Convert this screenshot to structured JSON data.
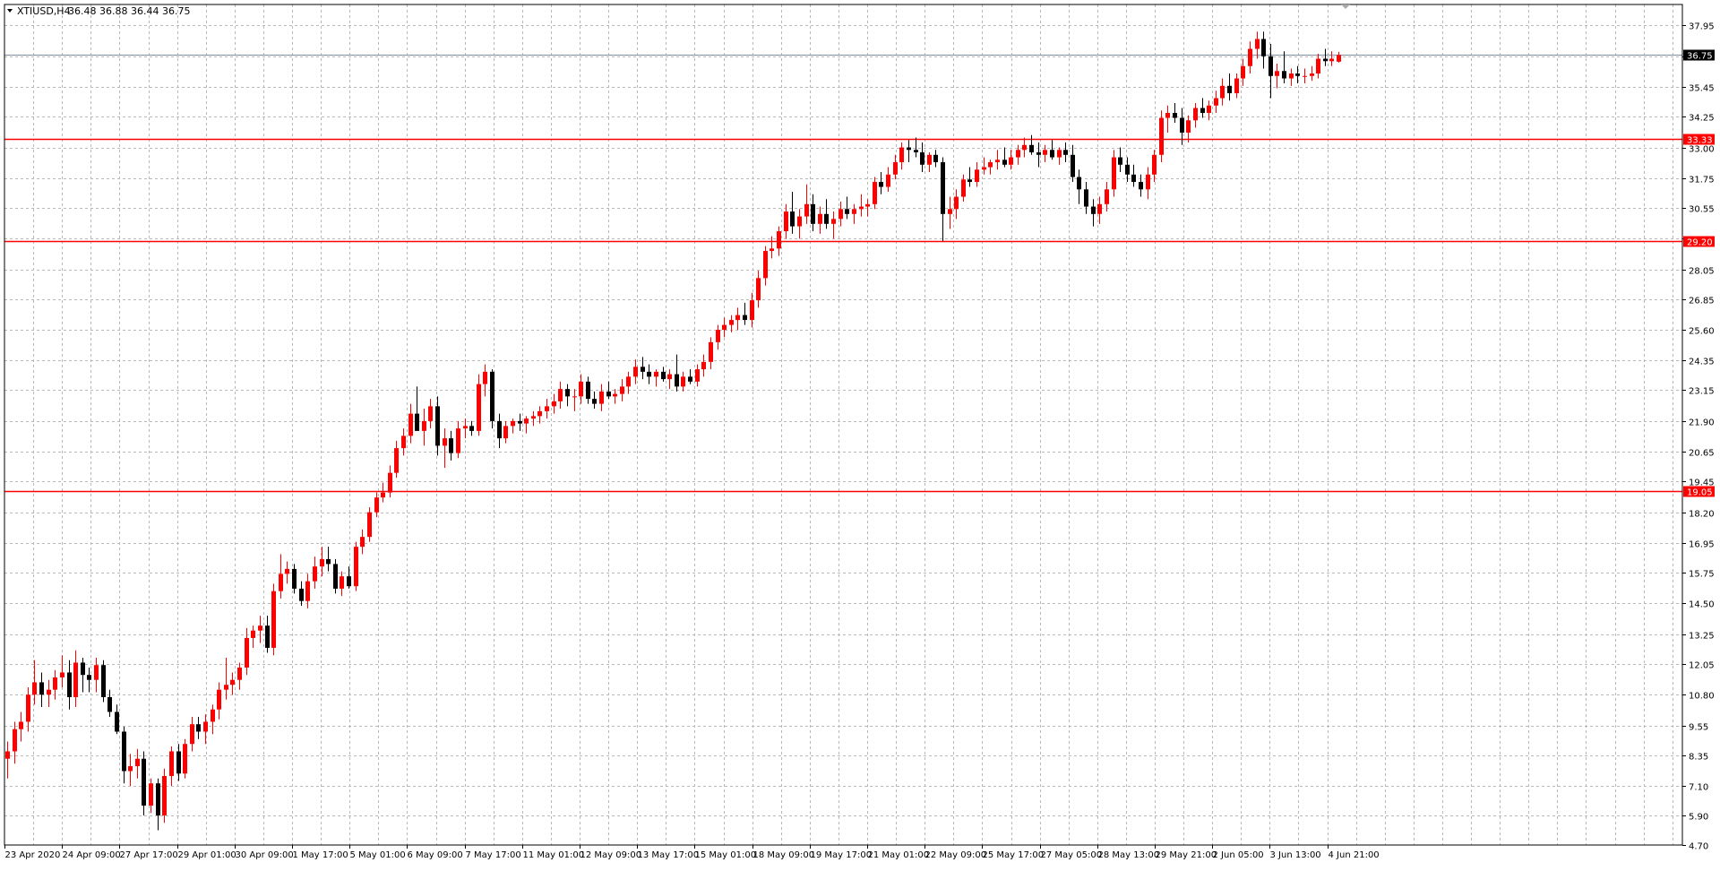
{
  "header": {
    "symbol": "XTIUSD,H4",
    "ohlc": "36.48 36.88 36.44 36.75"
  },
  "colors": {
    "background": "#ffffff",
    "grid": "#b8b8b8",
    "bull_candle": "#ff0000",
    "bear_candle": "#000000",
    "level_line": "#ff0000",
    "bid_line": "#7f8fa6",
    "axis_text": "#000000"
  },
  "chart_data": {
    "type": "candlestick",
    "title": "",
    "xlabel": "",
    "ylabel": "",
    "ylim": [
      4.7,
      38.8
    ],
    "grid": true,
    "y_ticks": [
      "37.95",
      "36.70",
      "35.45",
      "34.25",
      "33.00",
      "31.75",
      "30.55",
      "29.30",
      "28.05",
      "26.85",
      "25.60",
      "24.35",
      "23.15",
      "21.90",
      "20.65",
      "19.45",
      "18.20",
      "16.95",
      "15.75",
      "14.50",
      "13.25",
      "12.05",
      "10.80",
      "9.55",
      "8.35",
      "7.10",
      "5.90",
      "4.70"
    ],
    "x_labels": [
      "23 Apr 2020",
      "24 Apr 09:00",
      "27 Apr 17:00",
      "29 Apr 01:00",
      "30 Apr 09:00",
      "1 May 17:00",
      "5 May 01:00",
      "6 May 09:00",
      "7 May 17:00",
      "11 May 01:00",
      "12 May 09:00",
      "13 May 17:00",
      "15 May 01:00",
      "18 May 09:00",
      "19 May 17:00",
      "21 May 01:00",
      "22 May 09:00",
      "25 May 17:00",
      "27 May 05:00",
      "28 May 13:00",
      "29 May 21:00",
      "2 Jun 05:00",
      "3 Jun 13:00",
      "4 Jun 21:00"
    ],
    "horizontal_levels": [
      {
        "value": 33.33,
        "label": "33.33"
      },
      {
        "value": 29.2,
        "label": "29.20"
      },
      {
        "value": 19.05,
        "label": "19.05"
      }
    ],
    "bid_line": {
      "value": 36.75,
      "label": "36.75"
    },
    "candles": [
      {
        "o": 8.2,
        "h": 8.9,
        "l": 7.4,
        "c": 8.5
      },
      {
        "o": 8.5,
        "h": 9.7,
        "l": 8.0,
        "c": 9.4
      },
      {
        "o": 9.4,
        "h": 10.1,
        "l": 8.9,
        "c": 9.7
      },
      {
        "o": 9.7,
        "h": 11.1,
        "l": 9.3,
        "c": 10.8
      },
      {
        "o": 10.8,
        "h": 12.2,
        "l": 10.4,
        "c": 11.3
      },
      {
        "o": 11.3,
        "h": 11.7,
        "l": 10.3,
        "c": 10.8
      },
      {
        "o": 10.8,
        "h": 11.4,
        "l": 10.3,
        "c": 11.0
      },
      {
        "o": 11.0,
        "h": 11.8,
        "l": 10.6,
        "c": 11.5
      },
      {
        "o": 11.5,
        "h": 12.4,
        "l": 11.1,
        "c": 11.7
      },
      {
        "o": 11.7,
        "h": 12.2,
        "l": 10.2,
        "c": 10.7
      },
      {
        "o": 10.7,
        "h": 12.6,
        "l": 10.3,
        "c": 12.1
      },
      {
        "o": 12.1,
        "h": 12.3,
        "l": 10.9,
        "c": 11.6
      },
      {
        "o": 11.6,
        "h": 11.9,
        "l": 10.9,
        "c": 11.4
      },
      {
        "o": 11.4,
        "h": 12.3,
        "l": 10.9,
        "c": 12.0
      },
      {
        "o": 12.0,
        "h": 12.2,
        "l": 10.5,
        "c": 10.7
      },
      {
        "o": 10.7,
        "h": 11.0,
        "l": 9.9,
        "c": 10.1
      },
      {
        "o": 10.1,
        "h": 10.4,
        "l": 9.2,
        "c": 9.3
      },
      {
        "o": 9.3,
        "h": 9.5,
        "l": 7.2,
        "c": 7.7
      },
      {
        "o": 7.7,
        "h": 8.4,
        "l": 7.1,
        "c": 7.9
      },
      {
        "o": 7.9,
        "h": 8.6,
        "l": 7.4,
        "c": 8.2
      },
      {
        "o": 8.2,
        "h": 8.5,
        "l": 5.9,
        "c": 6.3
      },
      {
        "o": 6.3,
        "h": 7.4,
        "l": 6.0,
        "c": 7.2
      },
      {
        "o": 7.2,
        "h": 7.4,
        "l": 5.3,
        "c": 5.9
      },
      {
        "o": 5.9,
        "h": 7.8,
        "l": 5.6,
        "c": 7.5
      },
      {
        "o": 7.5,
        "h": 8.7,
        "l": 7.1,
        "c": 8.5
      },
      {
        "o": 8.5,
        "h": 8.8,
        "l": 7.3,
        "c": 7.6
      },
      {
        "o": 7.6,
        "h": 9.0,
        "l": 7.4,
        "c": 8.8
      },
      {
        "o": 8.8,
        "h": 9.9,
        "l": 8.5,
        "c": 9.6
      },
      {
        "o": 9.6,
        "h": 9.9,
        "l": 9.0,
        "c": 9.3
      },
      {
        "o": 9.3,
        "h": 10.0,
        "l": 8.8,
        "c": 9.7
      },
      {
        "o": 9.7,
        "h": 10.4,
        "l": 9.2,
        "c": 10.2
      },
      {
        "o": 10.2,
        "h": 11.3,
        "l": 9.8,
        "c": 11.0
      },
      {
        "o": 11.0,
        "h": 12.3,
        "l": 10.6,
        "c": 11.2
      },
      {
        "o": 11.2,
        "h": 11.7,
        "l": 10.8,
        "c": 11.4
      },
      {
        "o": 11.4,
        "h": 12.1,
        "l": 11.0,
        "c": 11.9
      },
      {
        "o": 11.9,
        "h": 13.5,
        "l": 11.6,
        "c": 13.1
      },
      {
        "o": 13.1,
        "h": 13.6,
        "l": 12.7,
        "c": 13.4
      },
      {
        "o": 13.4,
        "h": 14.0,
        "l": 12.9,
        "c": 13.6
      },
      {
        "o": 13.6,
        "h": 14.0,
        "l": 12.5,
        "c": 12.7
      },
      {
        "o": 12.7,
        "h": 15.3,
        "l": 12.4,
        "c": 15.0
      },
      {
        "o": 15.0,
        "h": 16.5,
        "l": 14.7,
        "c": 15.7
      },
      {
        "o": 15.7,
        "h": 16.2,
        "l": 15.3,
        "c": 15.9
      },
      {
        "o": 15.9,
        "h": 16.1,
        "l": 14.9,
        "c": 15.1
      },
      {
        "o": 15.1,
        "h": 15.4,
        "l": 14.4,
        "c": 14.6
      },
      {
        "o": 14.6,
        "h": 15.7,
        "l": 14.3,
        "c": 15.4
      },
      {
        "o": 15.4,
        "h": 16.4,
        "l": 15.1,
        "c": 16.0
      },
      {
        "o": 16.0,
        "h": 16.8,
        "l": 15.6,
        "c": 16.3
      },
      {
        "o": 16.3,
        "h": 16.8,
        "l": 15.8,
        "c": 16.1
      },
      {
        "o": 16.1,
        "h": 16.3,
        "l": 14.9,
        "c": 15.1
      },
      {
        "o": 15.1,
        "h": 15.8,
        "l": 14.8,
        "c": 15.6
      },
      {
        "o": 15.6,
        "h": 16.0,
        "l": 15.1,
        "c": 15.2
      },
      {
        "o": 15.2,
        "h": 17.0,
        "l": 15.0,
        "c": 16.8
      },
      {
        "o": 16.8,
        "h": 17.5,
        "l": 16.5,
        "c": 17.2
      },
      {
        "o": 17.2,
        "h": 18.4,
        "l": 17.0,
        "c": 18.2
      },
      {
        "o": 18.2,
        "h": 19.0,
        "l": 18.0,
        "c": 18.8
      },
      {
        "o": 18.8,
        "h": 19.4,
        "l": 18.6,
        "c": 19.0
      },
      {
        "o": 19.0,
        "h": 20.1,
        "l": 18.8,
        "c": 19.8
      },
      {
        "o": 19.8,
        "h": 21.1,
        "l": 19.6,
        "c": 20.8
      },
      {
        "o": 20.8,
        "h": 21.6,
        "l": 20.5,
        "c": 21.3
      },
      {
        "o": 21.3,
        "h": 22.6,
        "l": 21.0,
        "c": 22.2
      },
      {
        "o": 22.2,
        "h": 23.3,
        "l": 21.8,
        "c": 21.5
      },
      {
        "o": 21.5,
        "h": 22.4,
        "l": 20.9,
        "c": 21.9
      },
      {
        "o": 21.9,
        "h": 22.8,
        "l": 21.6,
        "c": 22.5
      },
      {
        "o": 22.5,
        "h": 22.9,
        "l": 20.5,
        "c": 20.9
      },
      {
        "o": 20.9,
        "h": 21.6,
        "l": 20.0,
        "c": 21.2
      },
      {
        "o": 21.2,
        "h": 21.5,
        "l": 20.3,
        "c": 20.6
      },
      {
        "o": 20.6,
        "h": 21.9,
        "l": 20.4,
        "c": 21.6
      },
      {
        "o": 21.6,
        "h": 22.0,
        "l": 21.2,
        "c": 21.7
      },
      {
        "o": 21.7,
        "h": 21.9,
        "l": 21.3,
        "c": 21.5
      },
      {
        "o": 21.5,
        "h": 23.8,
        "l": 21.3,
        "c": 23.4
      },
      {
        "o": 23.4,
        "h": 24.2,
        "l": 22.9,
        "c": 23.9
      },
      {
        "o": 23.9,
        "h": 24.0,
        "l": 21.6,
        "c": 21.9
      },
      {
        "o": 21.9,
        "h": 22.2,
        "l": 20.8,
        "c": 21.2
      },
      {
        "o": 21.2,
        "h": 21.9,
        "l": 21.0,
        "c": 21.7
      },
      {
        "o": 21.7,
        "h": 22.0,
        "l": 21.4,
        "c": 21.9
      },
      {
        "o": 21.9,
        "h": 22.2,
        "l": 21.5,
        "c": 21.8
      },
      {
        "o": 21.8,
        "h": 22.1,
        "l": 21.4,
        "c": 22.0
      },
      {
        "o": 22.0,
        "h": 22.3,
        "l": 21.7,
        "c": 22.1
      },
      {
        "o": 22.1,
        "h": 22.5,
        "l": 21.8,
        "c": 22.3
      },
      {
        "o": 22.3,
        "h": 22.8,
        "l": 22.0,
        "c": 22.5
      },
      {
        "o": 22.5,
        "h": 23.0,
        "l": 22.2,
        "c": 22.7
      },
      {
        "o": 22.7,
        "h": 23.5,
        "l": 22.4,
        "c": 23.2
      },
      {
        "o": 23.2,
        "h": 23.4,
        "l": 22.5,
        "c": 22.9
      },
      {
        "o": 22.9,
        "h": 23.2,
        "l": 22.3,
        "c": 22.9
      },
      {
        "o": 22.9,
        "h": 23.8,
        "l": 22.6,
        "c": 23.5
      },
      {
        "o": 23.5,
        "h": 23.7,
        "l": 22.6,
        "c": 22.8
      },
      {
        "o": 22.8,
        "h": 23.1,
        "l": 22.4,
        "c": 22.6
      },
      {
        "o": 22.6,
        "h": 23.4,
        "l": 22.3,
        "c": 23.1
      },
      {
        "o": 23.1,
        "h": 23.5,
        "l": 22.8,
        "c": 22.9
      },
      {
        "o": 22.9,
        "h": 23.2,
        "l": 22.6,
        "c": 23.0
      },
      {
        "o": 23.0,
        "h": 23.6,
        "l": 22.7,
        "c": 23.3
      },
      {
        "o": 23.3,
        "h": 23.9,
        "l": 23.0,
        "c": 23.7
      },
      {
        "o": 23.7,
        "h": 24.4,
        "l": 23.4,
        "c": 24.1
      },
      {
        "o": 24.1,
        "h": 24.5,
        "l": 23.6,
        "c": 23.9
      },
      {
        "o": 23.9,
        "h": 24.2,
        "l": 23.4,
        "c": 23.7
      },
      {
        "o": 23.7,
        "h": 24.0,
        "l": 23.3,
        "c": 23.9
      },
      {
        "o": 23.9,
        "h": 24.1,
        "l": 23.5,
        "c": 23.6
      },
      {
        "o": 23.6,
        "h": 24.0,
        "l": 23.2,
        "c": 23.8
      },
      {
        "o": 23.8,
        "h": 24.6,
        "l": 23.1,
        "c": 23.3
      },
      {
        "o": 23.3,
        "h": 23.9,
        "l": 23.1,
        "c": 23.7
      },
      {
        "o": 23.7,
        "h": 24.0,
        "l": 23.4,
        "c": 23.5
      },
      {
        "o": 23.5,
        "h": 24.2,
        "l": 23.3,
        "c": 24.0
      },
      {
        "o": 24.0,
        "h": 24.6,
        "l": 23.7,
        "c": 24.3
      },
      {
        "o": 24.3,
        "h": 25.3,
        "l": 24.0,
        "c": 25.1
      },
      {
        "o": 25.1,
        "h": 25.8,
        "l": 24.8,
        "c": 25.6
      },
      {
        "o": 25.6,
        "h": 26.1,
        "l": 25.3,
        "c": 25.8
      },
      {
        "o": 25.8,
        "h": 26.2,
        "l": 25.5,
        "c": 26.0
      },
      {
        "o": 26.0,
        "h": 26.5,
        "l": 25.6,
        "c": 26.2
      },
      {
        "o": 26.2,
        "h": 26.7,
        "l": 25.8,
        "c": 26.0
      },
      {
        "o": 26.0,
        "h": 27.1,
        "l": 25.7,
        "c": 26.8
      },
      {
        "o": 26.8,
        "h": 28.0,
        "l": 26.5,
        "c": 27.7
      },
      {
        "o": 27.7,
        "h": 29.0,
        "l": 27.4,
        "c": 28.8
      },
      {
        "o": 28.8,
        "h": 29.4,
        "l": 28.5,
        "c": 28.9
      },
      {
        "o": 28.9,
        "h": 29.8,
        "l": 28.6,
        "c": 29.6
      },
      {
        "o": 29.6,
        "h": 30.7,
        "l": 29.3,
        "c": 30.4
      },
      {
        "o": 30.4,
        "h": 31.2,
        "l": 29.5,
        "c": 29.8
      },
      {
        "o": 29.8,
        "h": 30.5,
        "l": 29.3,
        "c": 30.2
      },
      {
        "o": 30.2,
        "h": 31.5,
        "l": 29.9,
        "c": 30.7
      },
      {
        "o": 30.7,
        "h": 31.1,
        "l": 29.6,
        "c": 29.9
      },
      {
        "o": 29.9,
        "h": 30.6,
        "l": 29.5,
        "c": 30.3
      },
      {
        "o": 30.3,
        "h": 30.9,
        "l": 29.7,
        "c": 29.9
      },
      {
        "o": 29.9,
        "h": 30.4,
        "l": 29.3,
        "c": 30.1
      },
      {
        "o": 30.1,
        "h": 30.8,
        "l": 29.8,
        "c": 30.5
      },
      {
        "o": 30.5,
        "h": 31.0,
        "l": 30.1,
        "c": 30.3
      },
      {
        "o": 30.3,
        "h": 30.7,
        "l": 29.9,
        "c": 30.5
      },
      {
        "o": 30.5,
        "h": 31.1,
        "l": 30.2,
        "c": 30.6
      },
      {
        "o": 30.6,
        "h": 30.9,
        "l": 30.2,
        "c": 30.7
      },
      {
        "o": 30.7,
        "h": 31.8,
        "l": 30.5,
        "c": 31.6
      },
      {
        "o": 31.6,
        "h": 32.0,
        "l": 31.1,
        "c": 31.4
      },
      {
        "o": 31.4,
        "h": 32.2,
        "l": 31.2,
        "c": 31.9
      },
      {
        "o": 31.9,
        "h": 32.7,
        "l": 31.7,
        "c": 32.4
      },
      {
        "o": 32.4,
        "h": 33.2,
        "l": 32.1,
        "c": 33.0
      },
      {
        "o": 33.0,
        "h": 33.3,
        "l": 32.4,
        "c": 32.9
      },
      {
        "o": 32.9,
        "h": 33.4,
        "l": 32.6,
        "c": 32.8
      },
      {
        "o": 32.8,
        "h": 33.2,
        "l": 32.0,
        "c": 32.3
      },
      {
        "o": 32.3,
        "h": 32.8,
        "l": 32.0,
        "c": 32.7
      },
      {
        "o": 32.7,
        "h": 32.9,
        "l": 32.2,
        "c": 32.4
      },
      {
        "o": 32.4,
        "h": 32.6,
        "l": 29.2,
        "c": 30.3
      },
      {
        "o": 30.3,
        "h": 31.0,
        "l": 29.7,
        "c": 30.5
      },
      {
        "o": 30.5,
        "h": 31.3,
        "l": 30.1,
        "c": 31.0
      },
      {
        "o": 31.0,
        "h": 31.9,
        "l": 30.8,
        "c": 31.7
      },
      {
        "o": 31.7,
        "h": 32.2,
        "l": 31.4,
        "c": 31.6
      },
      {
        "o": 31.6,
        "h": 32.4,
        "l": 31.4,
        "c": 32.1
      },
      {
        "o": 32.1,
        "h": 32.6,
        "l": 31.9,
        "c": 32.2
      },
      {
        "o": 32.2,
        "h": 32.5,
        "l": 31.9,
        "c": 32.4
      },
      {
        "o": 32.4,
        "h": 32.9,
        "l": 32.1,
        "c": 32.5
      },
      {
        "o": 32.5,
        "h": 33.0,
        "l": 32.2,
        "c": 32.3
      },
      {
        "o": 32.3,
        "h": 32.9,
        "l": 32.1,
        "c": 32.6
      },
      {
        "o": 32.6,
        "h": 33.1,
        "l": 32.3,
        "c": 32.9
      },
      {
        "o": 32.9,
        "h": 33.4,
        "l": 32.6,
        "c": 33.1
      },
      {
        "o": 33.1,
        "h": 33.5,
        "l": 32.7,
        "c": 32.8
      },
      {
        "o": 32.8,
        "h": 33.2,
        "l": 32.2,
        "c": 32.7
      },
      {
        "o": 32.7,
        "h": 33.1,
        "l": 32.4,
        "c": 32.9
      },
      {
        "o": 32.9,
        "h": 33.3,
        "l": 32.5,
        "c": 32.6
      },
      {
        "o": 32.6,
        "h": 33.0,
        "l": 32.3,
        "c": 32.9
      },
      {
        "o": 32.9,
        "h": 33.2,
        "l": 32.4,
        "c": 32.7
      },
      {
        "o": 32.7,
        "h": 33.1,
        "l": 31.6,
        "c": 31.8
      },
      {
        "o": 31.8,
        "h": 32.1,
        "l": 30.7,
        "c": 31.3
      },
      {
        "o": 31.3,
        "h": 31.6,
        "l": 30.3,
        "c": 30.6
      },
      {
        "o": 30.6,
        "h": 30.9,
        "l": 29.8,
        "c": 30.3
      },
      {
        "o": 30.3,
        "h": 31.0,
        "l": 29.9,
        "c": 30.7
      },
      {
        "o": 30.7,
        "h": 31.6,
        "l": 30.4,
        "c": 31.3
      },
      {
        "o": 31.3,
        "h": 32.9,
        "l": 31.0,
        "c": 32.6
      },
      {
        "o": 32.6,
        "h": 33.0,
        "l": 32.0,
        "c": 32.3
      },
      {
        "o": 32.3,
        "h": 32.6,
        "l": 31.6,
        "c": 31.9
      },
      {
        "o": 31.9,
        "h": 32.3,
        "l": 31.4,
        "c": 31.6
      },
      {
        "o": 31.6,
        "h": 31.9,
        "l": 31.0,
        "c": 31.3
      },
      {
        "o": 31.3,
        "h": 32.2,
        "l": 30.9,
        "c": 31.9
      },
      {
        "o": 31.9,
        "h": 32.9,
        "l": 31.6,
        "c": 32.7
      },
      {
        "o": 32.7,
        "h": 34.5,
        "l": 32.4,
        "c": 34.2
      },
      {
        "o": 34.2,
        "h": 34.7,
        "l": 33.6,
        "c": 34.4
      },
      {
        "o": 34.4,
        "h": 34.8,
        "l": 34.0,
        "c": 34.2
      },
      {
        "o": 34.2,
        "h": 34.6,
        "l": 33.1,
        "c": 33.6
      },
      {
        "o": 33.6,
        "h": 34.3,
        "l": 33.2,
        "c": 34.1
      },
      {
        "o": 34.1,
        "h": 34.8,
        "l": 33.8,
        "c": 34.6
      },
      {
        "o": 34.6,
        "h": 35.0,
        "l": 34.2,
        "c": 34.4
      },
      {
        "o": 34.4,
        "h": 34.9,
        "l": 34.1,
        "c": 34.7
      },
      {
        "o": 34.7,
        "h": 35.3,
        "l": 34.4,
        "c": 35.0
      },
      {
        "o": 35.0,
        "h": 35.8,
        "l": 34.7,
        "c": 35.5
      },
      {
        "o": 35.5,
        "h": 36.0,
        "l": 34.9,
        "c": 35.2
      },
      {
        "o": 35.2,
        "h": 36.0,
        "l": 35.0,
        "c": 35.8
      },
      {
        "o": 35.8,
        "h": 36.6,
        "l": 35.5,
        "c": 36.3
      },
      {
        "o": 36.3,
        "h": 37.3,
        "l": 36.0,
        "c": 37.0
      },
      {
        "o": 37.0,
        "h": 37.7,
        "l": 36.6,
        "c": 37.4
      },
      {
        "o": 37.4,
        "h": 37.7,
        "l": 36.2,
        "c": 36.7
      },
      {
        "o": 36.7,
        "h": 37.2,
        "l": 35.0,
        "c": 35.9
      },
      {
        "o": 35.9,
        "h": 36.4,
        "l": 35.4,
        "c": 36.1
      },
      {
        "o": 36.1,
        "h": 36.9,
        "l": 35.6,
        "c": 35.8
      },
      {
        "o": 35.8,
        "h": 36.2,
        "l": 35.5,
        "c": 36.0
      },
      {
        "o": 36.0,
        "h": 36.3,
        "l": 35.6,
        "c": 35.9
      },
      {
        "o": 35.9,
        "h": 36.2,
        "l": 35.6,
        "c": 35.9
      },
      {
        "o": 35.9,
        "h": 36.3,
        "l": 35.7,
        "c": 36.0
      },
      {
        "o": 36.0,
        "h": 36.8,
        "l": 35.8,
        "c": 36.6
      },
      {
        "o": 36.6,
        "h": 37.0,
        "l": 36.3,
        "c": 36.5
      },
      {
        "o": 36.5,
        "h": 36.9,
        "l": 36.3,
        "c": 36.6
      },
      {
        "o": 36.48,
        "h": 36.88,
        "l": 36.44,
        "c": 36.75
      }
    ]
  }
}
